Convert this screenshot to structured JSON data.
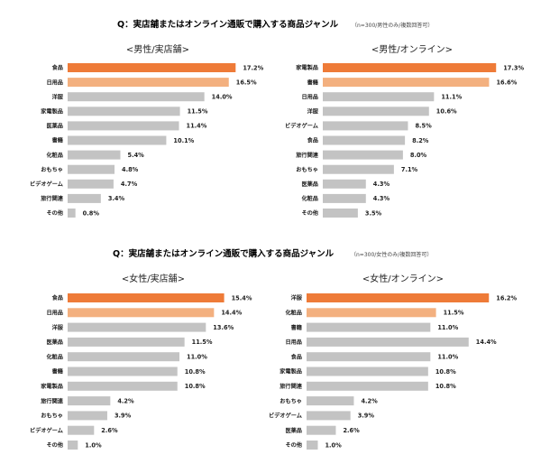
{
  "colors": {
    "top": "#ee7b38",
    "second": "#f3b07f",
    "rest": "#c3c3c3"
  },
  "sections": [
    {
      "title": "Q：実店舗またはオンライン通販で購入する商品ジャンル",
      "note": "（n=300/男性のみ/複数回答可）"
    },
    {
      "title": "Q：実店舗またはオンライン通販で購入する商品ジャンル",
      "note": "（n=300/女性のみ/複数回答可）"
    }
  ],
  "chart_data": [
    {
      "type": "bar",
      "orientation": "horizontal",
      "title": "<男性/実店舗>",
      "categories": [
        "食品",
        "日用品",
        "洋服",
        "家電製品",
        "医薬品",
        "書籍",
        "化粧品",
        "おもちゃ",
        "ビデオゲーム",
        "旅行関連",
        "その他"
      ],
      "values": [
        17.2,
        16.5,
        14.0,
        11.5,
        11.4,
        10.1,
        5.4,
        4.8,
        4.7,
        3.4,
        0.8
      ],
      "labels": [
        "17.2%",
        "16.5%",
        "14.0%",
        "11.5%",
        "11.4%",
        "10.1%",
        "5.4%",
        "4.8%",
        "4.7%",
        "3.4%",
        "0.8%"
      ],
      "xlim": [
        0,
        18
      ]
    },
    {
      "type": "bar",
      "orientation": "horizontal",
      "title": "<男性/オンライン>",
      "categories": [
        "家電製品",
        "書籍",
        "日用品",
        "洋服",
        "ビデオゲーム",
        "食品",
        "旅行関連",
        "おもちゃ",
        "医薬品",
        "化粧品",
        "その他"
      ],
      "values": [
        17.3,
        16.6,
        11.1,
        10.6,
        8.5,
        8.2,
        8.0,
        7.1,
        4.3,
        4.3,
        3.5
      ],
      "labels": [
        "17.3%",
        "16.6%",
        "11.1%",
        "10.6%",
        "8.5%",
        "8.2%",
        "8.0%",
        "7.1%",
        "4.3%",
        "4.3%",
        "3.5%"
      ],
      "xlim": [
        0,
        18
      ]
    },
    {
      "type": "bar",
      "orientation": "horizontal",
      "title": "<女性/実店舗>",
      "categories": [
        "食品",
        "日用品",
        "洋服",
        "医薬品",
        "化粧品",
        "書籍",
        "家電製品",
        "旅行関連",
        "おもちゃ",
        "ビデオゲーム",
        "その他"
      ],
      "values": [
        15.4,
        14.4,
        13.6,
        11.5,
        11.0,
        10.8,
        10.8,
        4.2,
        3.9,
        2.6,
        1.0
      ],
      "labels": [
        "15.4%",
        "14.4%",
        "13.6%",
        "11.5%",
        "11.0%",
        "10.8%",
        "10.8%",
        "4.2%",
        "3.9%",
        "2.6%",
        "1.0%"
      ],
      "xlim": [
        0,
        16.5
      ]
    },
    {
      "type": "bar",
      "orientation": "horizontal",
      "title": "<女性/オンライン>",
      "categories": [
        "洋服",
        "化粧品",
        "書籍",
        "日用品",
        "食品",
        "家電製品",
        "旅行関連",
        "おもちゃ",
        "ビデオゲーム",
        "医薬品",
        "その他"
      ],
      "values": [
        16.2,
        11.5,
        11.0,
        14.4,
        11.0,
        10.8,
        10.8,
        4.2,
        3.9,
        2.6,
        1.0
      ],
      "labels": [
        "16.2%",
        "11.5%",
        "11.0%",
        "14.4%",
        "11.0%",
        "10.8%",
        "10.8%",
        "4.2%",
        "3.9%",
        "2.6%",
        "1.0%"
      ],
      "xlim": [
        0,
        16.5
      ]
    }
  ]
}
